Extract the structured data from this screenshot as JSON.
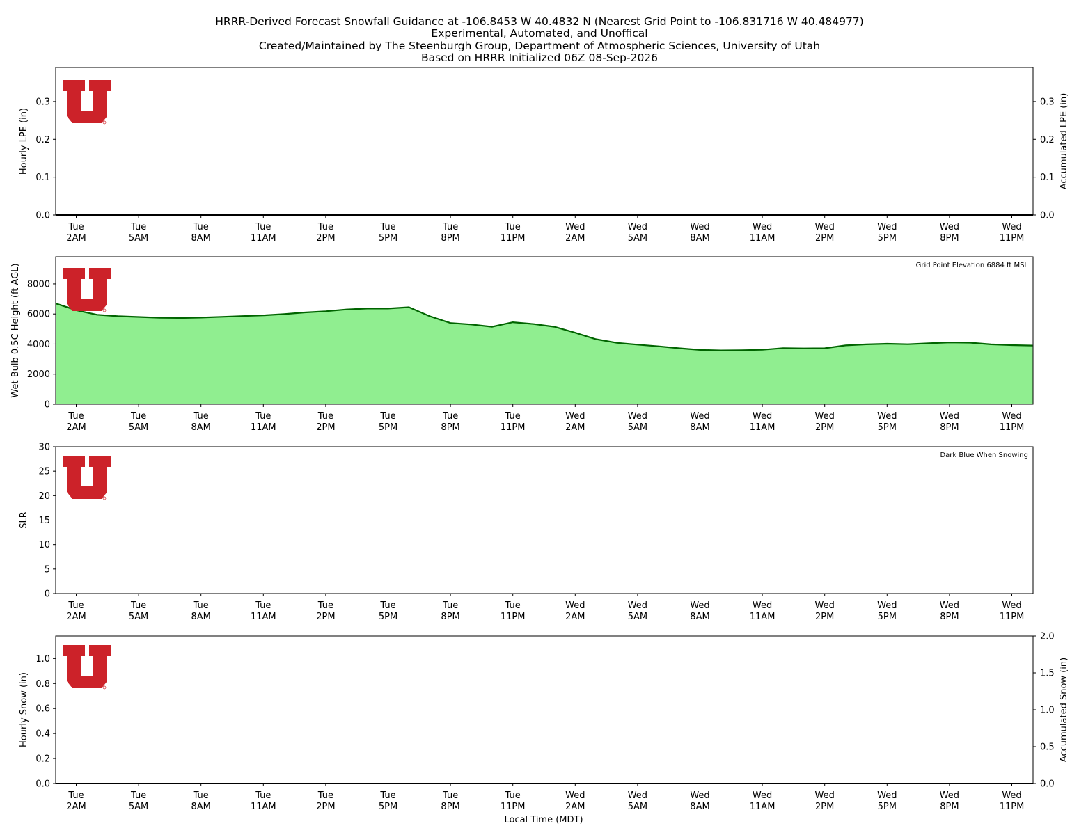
{
  "title": {
    "lines": [
      "HRRR-Derived Forecast Snowfall Guidance at -106.8453 W 40.4832 N (Nearest Grid Point to -106.831716 W 40.484977)",
      "Experimental, Automated, and Unoffical",
      "Created/Maintained by The Steenburgh Group, Department of Atmospheric Sciences, University of Utah",
      "Based on HRRR Initialized 06Z 08-Sep-2026"
    ]
  },
  "logo": {
    "color": "#cc2229",
    "icon": "university-of-utah-logo"
  },
  "x_axis": {
    "xlabel": "Local Time (MDT)",
    "tick_labels": [
      [
        "Tue",
        "2AM"
      ],
      [
        "Tue",
        "5AM"
      ],
      [
        "Tue",
        "8AM"
      ],
      [
        "Tue",
        "11AM"
      ],
      [
        "Tue",
        "2PM"
      ],
      [
        "Tue",
        "5PM"
      ],
      [
        "Tue",
        "8PM"
      ],
      [
        "Tue",
        "11PM"
      ],
      [
        "Wed",
        "2AM"
      ],
      [
        "Wed",
        "5AM"
      ],
      [
        "Wed",
        "8AM"
      ],
      [
        "Wed",
        "11AM"
      ],
      [
        "Wed",
        "2PM"
      ],
      [
        "Wed",
        "5PM"
      ],
      [
        "Wed",
        "8PM"
      ],
      [
        "Wed",
        "11PM"
      ]
    ]
  },
  "chart_data": [
    {
      "type": "bar",
      "ylabel": "Hourly LPE (in)",
      "y2label": "Accumulated LPE (in)",
      "ylim": [
        0,
        0.39
      ],
      "yticks": [
        "0.0",
        "0.1",
        "0.2",
        "0.3"
      ],
      "y2ticks": [
        "0.0",
        "0.1",
        "0.2",
        "0.3"
      ],
      "values": [
        0,
        0,
        0,
        0,
        0,
        0,
        0,
        0,
        0,
        0,
        0,
        0,
        0,
        0,
        0,
        0,
        0,
        0,
        0,
        0,
        0,
        0,
        0,
        0,
        0,
        0,
        0,
        0,
        0,
        0,
        0,
        0,
        0,
        0,
        0,
        0,
        0,
        0,
        0,
        0,
        0,
        0,
        0,
        0,
        0,
        0,
        0,
        0
      ],
      "accumulated": 0
    },
    {
      "type": "area",
      "ylabel": "Wet Bulb 0.5C Height (ft AGL)",
      "annotation": "Grid Point Elevation 6884 ft MSL",
      "ylim": [
        0,
        9800
      ],
      "yticks": [
        "0",
        "2000",
        "4000",
        "6000",
        "8000"
      ],
      "fill_color": "#90ee90",
      "line_color": "#006400",
      "values": [
        6700,
        6250,
        5950,
        5850,
        5800,
        5750,
        5730,
        5760,
        5810,
        5860,
        5910,
        5990,
        6100,
        6180,
        6300,
        6360,
        6360,
        6450,
        5850,
        5400,
        5300,
        5150,
        5450,
        5330,
        5150,
        4750,
        4320,
        4080,
        3960,
        3850,
        3720,
        3610,
        3580,
        3590,
        3620,
        3730,
        3710,
        3720,
        3910,
        3980,
        4020,
        3990,
        4050,
        4110,
        4090,
        3980,
        3930,
        3900
      ]
    },
    {
      "type": "scatter",
      "ylabel": "SLR",
      "annotation": "Dark Blue When Snowing",
      "ylim": [
        0,
        30
      ],
      "yticks": [
        "0",
        "5",
        "10",
        "15",
        "20",
        "25",
        "30"
      ],
      "values": []
    },
    {
      "type": "bar",
      "ylabel": "Hourly Snow (in)",
      "y2label": "Accumulated Snow (in)",
      "ylim": [
        0,
        1.18
      ],
      "yticks": [
        "0.0",
        "0.2",
        "0.4",
        "0.6",
        "0.8",
        "1.0"
      ],
      "y2lim": [
        0,
        2.0
      ],
      "y2ticks": [
        "0.0",
        "0.5",
        "1.0",
        "1.5",
        "2.0"
      ],
      "values": [
        0,
        0,
        0,
        0,
        0,
        0,
        0,
        0,
        0,
        0,
        0,
        0,
        0,
        0,
        0,
        0,
        0,
        0,
        0,
        0,
        0,
        0,
        0,
        0,
        0,
        0,
        0,
        0,
        0,
        0,
        0,
        0,
        0,
        0,
        0,
        0,
        0,
        0,
        0,
        0,
        0,
        0,
        0,
        0,
        0,
        0,
        0,
        0
      ],
      "accumulated": 0
    }
  ]
}
